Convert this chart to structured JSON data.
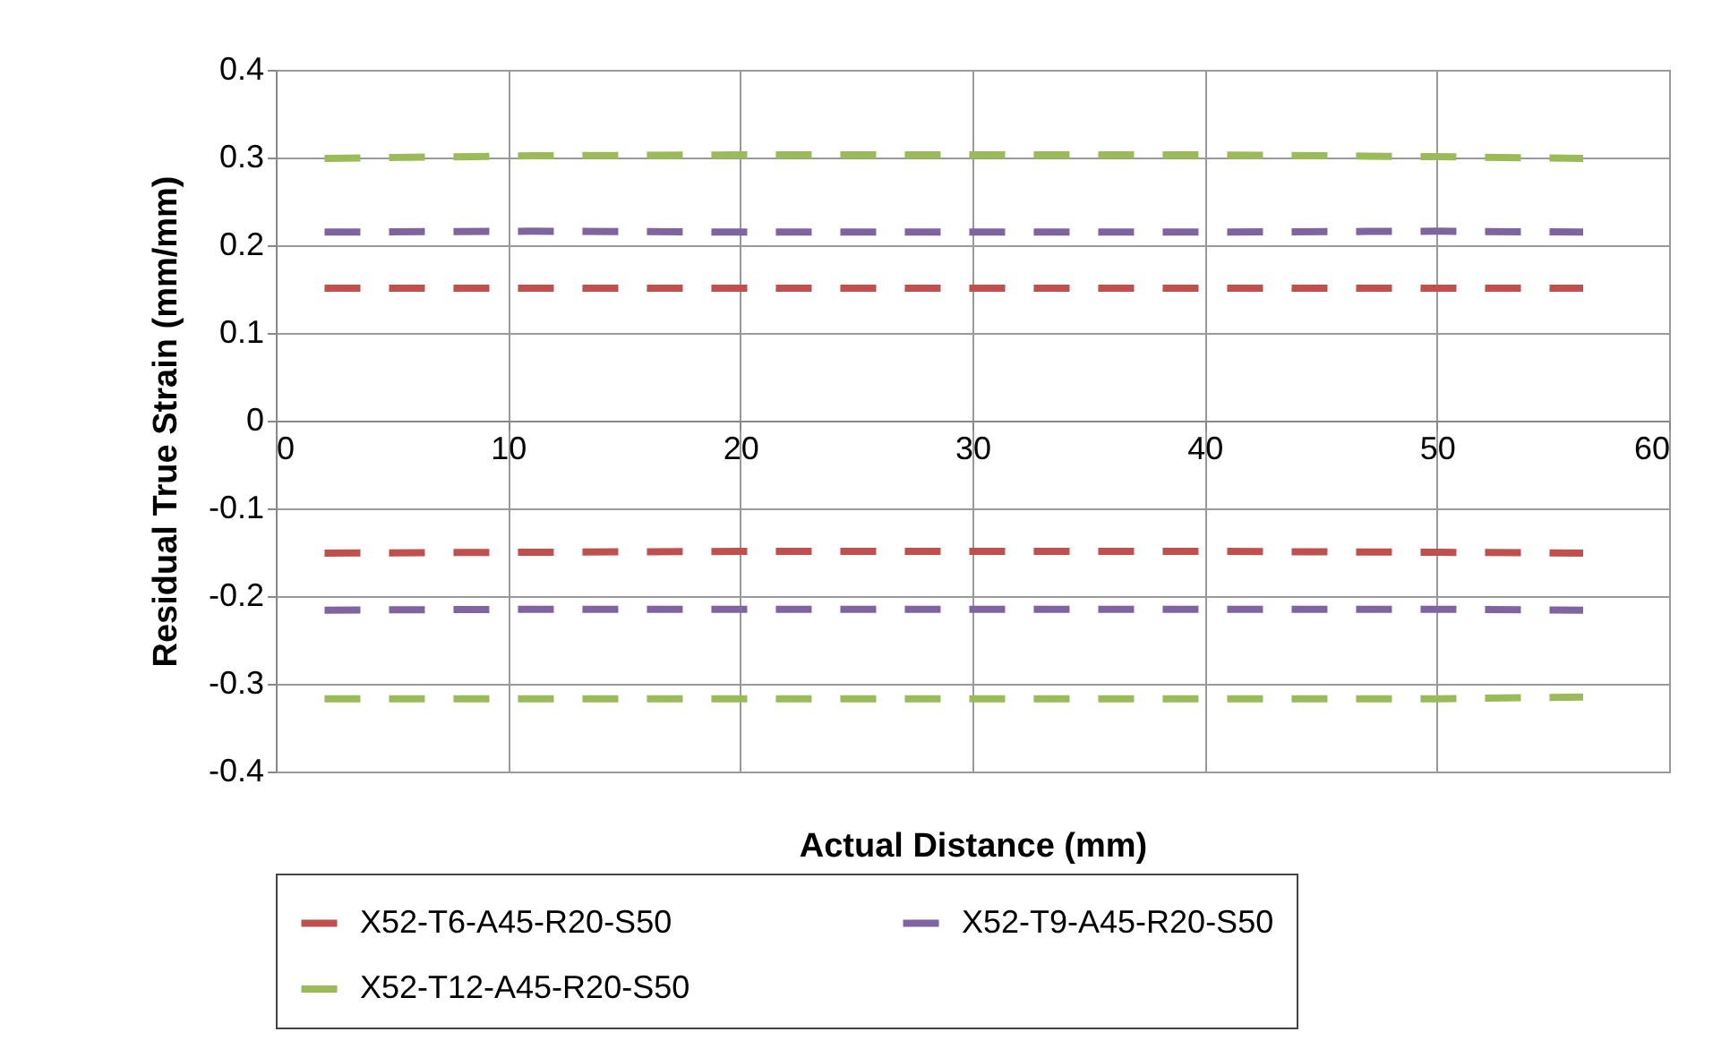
{
  "chart_data": {
    "type": "line",
    "xlabel": "Actual Distance (mm)",
    "ylabel": "Residual True Strain (mm/mm)",
    "x": [
      2.1,
      11,
      20,
      30,
      40,
      50,
      56.3
    ],
    "series": [
      {
        "name": "X52-T6-A45-R20-S50",
        "color": "#c0504d",
        "values": [
          0.151,
          0.151,
          0.151,
          0.151,
          0.151,
          0.151,
          0.151
        ]
      },
      {
        "name": "X52-T9-A45-R20-S50",
        "color": "#8064a2",
        "values": [
          0.215,
          0.216,
          0.215,
          0.215,
          0.215,
          0.216,
          0.215
        ]
      },
      {
        "name": "X52-T12-A45-R20-S50",
        "color": "#9bbb59",
        "values": [
          0.299,
          0.302,
          0.303,
          0.303,
          0.303,
          0.301,
          0.299
        ]
      },
      {
        "color": "#c0504d",
        "values": [
          -0.151,
          -0.15,
          -0.149,
          -0.149,
          -0.149,
          -0.15,
          -0.151
        ]
      },
      {
        "color": "#8064a2",
        "values": [
          -0.216,
          -0.215,
          -0.215,
          -0.215,
          -0.215,
          -0.215,
          -0.216
        ]
      },
      {
        "color": "#9bbb59",
        "values": [
          -0.317,
          -0.317,
          -0.317,
          -0.317,
          -0.317,
          -0.317,
          -0.315
        ]
      }
    ],
    "xlim": [
      0,
      60
    ],
    "xticks": [
      0,
      10,
      20,
      30,
      40,
      50,
      60
    ],
    "ylim": [
      -0.4,
      0.4
    ],
    "yticks": [
      -0.4,
      -0.3,
      -0.2,
      -0.1,
      0,
      0.1,
      0.2,
      0.3,
      0.4
    ],
    "grid": true,
    "legend": "bottom",
    "marker": "none",
    "line_style": "dashed"
  }
}
